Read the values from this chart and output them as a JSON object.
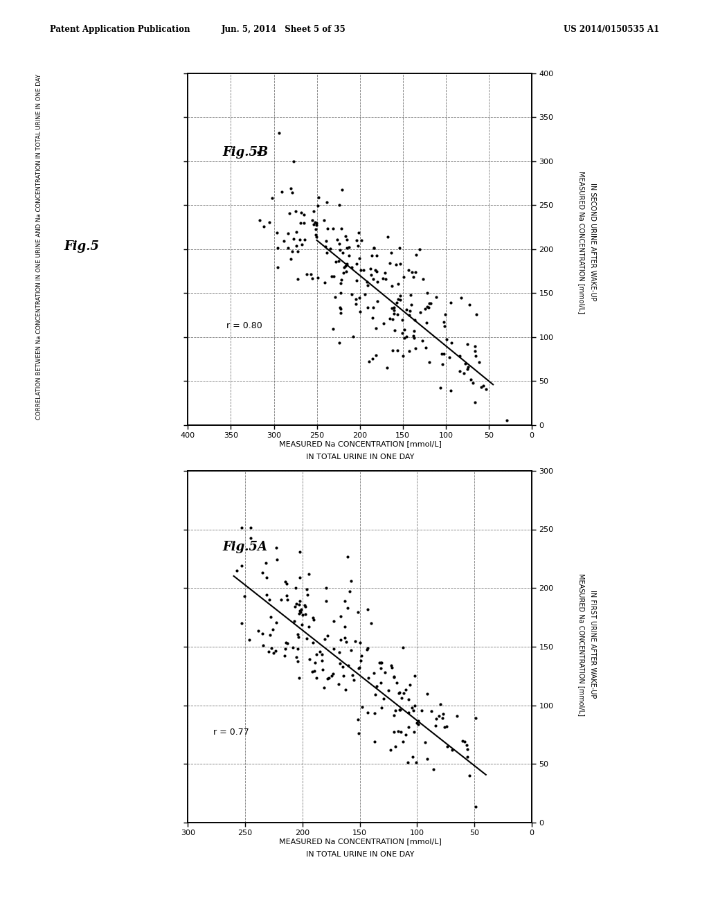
{
  "header_left": "Patent Application Publication",
  "header_mid": "Jun. 5, 2014   Sheet 5 of 35",
  "header_right": "US 2014/0150535 A1",
  "fig_label": "Fig.5",
  "fig5a_label": "Fig.5A",
  "fig5b_label": "Fig.5B",
  "fig5a_r": "r = 0.77",
  "fig5b_r": "r = 0.80",
  "fig5a_xlabel1": "MEASURED Na CONCENTRATION [mmol/L]",
  "fig5a_xlabel2": "IN TOTAL URINE IN ONE DAY",
  "fig5a_ylabel1": "MEASURED Na CONCENTRATION [mmol/L]",
  "fig5a_ylabel2": "IN FIRST URINE AFTER WAKE-UP",
  "fig5b_xlabel1": "MEASURED Na CONCENTRATION [mmol/L]",
  "fig5b_xlabel2": "IN TOTAL URINE IN ONE DAY",
  "fig5b_ylabel1": "MEASURED Na CONCENTRATION [mmol/L]",
  "fig5b_ylabel2": "IN SECOND URINE AFTER WAKE-UP",
  "side_label": "CORRELATION BETWEEN Na CONCENTRATION IN ONE URINE AND Na CONCENTRATION IN TOTAL URINE IN ONE DAY",
  "fig5a_xlim_max": 300,
  "fig5a_ylim_max": 300,
  "fig5a_xticks": [
    0,
    50,
    100,
    150,
    200,
    250,
    300
  ],
  "fig5a_yticks": [
    0,
    50,
    100,
    150,
    200,
    250,
    300
  ],
  "fig5b_xlim_max": 400,
  "fig5b_ylim_max": 400,
  "fig5b_xticks": [
    0,
    50,
    100,
    150,
    200,
    250,
    300,
    350,
    400
  ],
  "fig5b_yticks": [
    0,
    50,
    100,
    150,
    200,
    250,
    300,
    350,
    400
  ],
  "background": "#ffffff",
  "dot_color": "#000000",
  "line_color": "#000000"
}
